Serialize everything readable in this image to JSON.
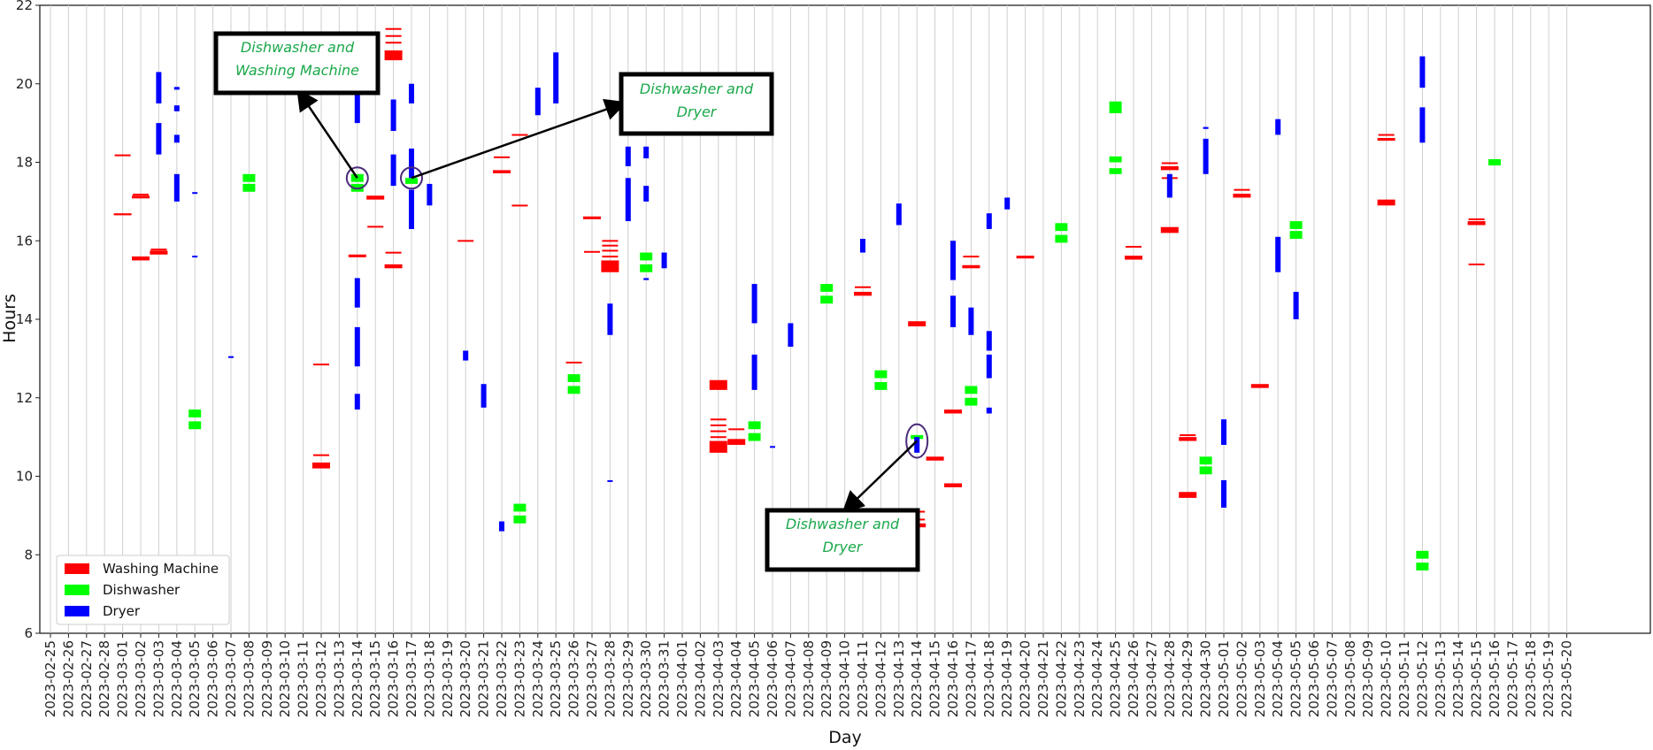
{
  "chart_data": {
    "type": "scatter",
    "title": "",
    "xlabel": "Day",
    "ylabel": "Hours",
    "ylim": [
      6,
      22
    ],
    "yticks": [
      6,
      8,
      10,
      12,
      14,
      16,
      18,
      20,
      22
    ],
    "grid": "vertical lines at each day",
    "legend_position": "lower-left",
    "categories": [
      "2023-02-25",
      "2023-02-26",
      "2023-02-27",
      "2023-02-28",
      "2023-03-01",
      "2023-03-02",
      "2023-03-03",
      "2023-03-04",
      "2023-03-05",
      "2023-03-06",
      "2023-03-07",
      "2023-03-08",
      "2023-03-09",
      "2023-03-10",
      "2023-03-11",
      "2023-03-12",
      "2023-03-13",
      "2023-03-14",
      "2023-03-15",
      "2023-03-16",
      "2023-03-17",
      "2023-03-18",
      "2023-03-19",
      "2023-03-20",
      "2023-03-21",
      "2023-03-22",
      "2023-03-23",
      "2023-03-24",
      "2023-03-25",
      "2023-03-26",
      "2023-03-27",
      "2023-03-28",
      "2023-03-29",
      "2023-03-30",
      "2023-03-31",
      "2023-04-01",
      "2023-04-02",
      "2023-04-03",
      "2023-04-04",
      "2023-04-05",
      "2023-04-06",
      "2023-04-07",
      "2023-04-08",
      "2023-04-09",
      "2023-04-10",
      "2023-04-11",
      "2023-04-12",
      "2023-04-13",
      "2023-04-14",
      "2023-04-15",
      "2023-04-16",
      "2023-04-17",
      "2023-04-18",
      "2023-04-19",
      "2023-04-20",
      "2023-04-21",
      "2023-04-22",
      "2023-04-23",
      "2023-04-24",
      "2023-04-25",
      "2023-04-26",
      "2023-04-27",
      "2023-04-28",
      "2023-04-29",
      "2023-04-30",
      "2023-05-01",
      "2023-05-02",
      "2023-05-03",
      "2023-05-04",
      "2023-05-05",
      "2023-05-06",
      "2023-05-07",
      "2023-05-08",
      "2023-05-09",
      "2023-05-10",
      "2023-05-11",
      "2023-05-12",
      "2023-05-13",
      "2023-05-14",
      "2023-05-15",
      "2023-05-16",
      "2023-05-17",
      "2023-05-18",
      "2023-05-19",
      "2023-05-20"
    ],
    "series": [
      {
        "name": "Washing Machine",
        "color": "#ff0000",
        "points": [
          [
            "2023-03-01",
            16.65,
            16.7
          ],
          [
            "2023-03-01",
            18.18,
            18.2
          ],
          [
            "2023-03-02",
            17.08,
            17.15
          ],
          [
            "2023-03-02",
            17.18,
            17.2
          ],
          [
            "2023-03-02",
            15.5,
            15.6
          ],
          [
            "2023-03-03",
            15.65,
            15.75
          ],
          [
            "2023-03-03",
            15.78,
            15.8
          ],
          [
            "2023-03-12",
            12.85,
            12.87
          ],
          [
            "2023-03-12",
            10.2,
            10.35
          ],
          [
            "2023-03-12",
            10.53,
            10.56
          ],
          [
            "2023-03-14",
            15.58,
            15.65
          ],
          [
            "2023-03-15",
            17.05,
            17.15
          ],
          [
            "2023-03-15",
            16.35,
            16.38
          ],
          [
            "2023-03-16",
            20.6,
            20.85
          ],
          [
            "2023-03-16",
            21.4,
            21.42
          ],
          [
            "2023-03-16",
            21.22,
            21.24
          ],
          [
            "2023-03-16",
            21.05,
            21.07
          ],
          [
            "2023-03-16",
            15.3,
            15.4
          ],
          [
            "2023-03-16",
            15.7,
            15.72
          ],
          [
            "2023-03-20",
            16.0,
            16.02
          ],
          [
            "2023-03-22",
            17.72,
            17.8
          ],
          [
            "2023-03-22",
            18.13,
            18.15
          ],
          [
            "2023-03-23",
            16.9,
            16.92
          ],
          [
            "2023-03-23",
            18.7,
            18.72
          ],
          [
            "2023-03-26",
            12.9,
            12.92
          ],
          [
            "2023-03-27",
            16.55,
            16.62
          ],
          [
            "2023-03-27",
            15.72,
            15.74
          ],
          [
            "2023-03-28",
            15.2,
            15.5
          ],
          [
            "2023-03-28",
            15.6,
            15.62
          ],
          [
            "2023-03-28",
            15.75,
            15.77
          ],
          [
            "2023-03-28",
            15.88,
            15.9
          ],
          [
            "2023-03-28",
            16.0,
            16.02
          ],
          [
            "2023-04-03",
            10.6,
            10.9
          ],
          [
            "2023-04-03",
            11.0,
            11.02
          ],
          [
            "2023-04-03",
            11.15,
            11.17
          ],
          [
            "2023-04-03",
            11.3,
            11.32
          ],
          [
            "2023-04-03",
            11.45,
            11.47
          ],
          [
            "2023-04-03",
            12.2,
            12.45
          ],
          [
            "2023-04-04",
            10.8,
            10.95
          ],
          [
            "2023-04-04",
            11.2,
            11.22
          ],
          [
            "2023-04-11",
            14.6,
            14.7
          ],
          [
            "2023-04-11",
            14.82,
            14.84
          ],
          [
            "2023-04-14",
            13.82,
            13.95
          ],
          [
            "2023-04-14",
            8.7,
            8.8
          ],
          [
            "2023-04-14",
            8.9,
            8.92
          ],
          [
            "2023-04-14",
            9.1,
            9.12
          ],
          [
            "2023-04-15",
            10.4,
            10.5
          ],
          [
            "2023-04-16",
            9.72,
            9.82
          ],
          [
            "2023-04-16",
            11.6,
            11.7
          ],
          [
            "2023-04-17",
            15.3,
            15.38
          ],
          [
            "2023-04-17",
            15.6,
            15.62
          ],
          [
            "2023-04-20",
            15.55,
            15.62
          ],
          [
            "2023-04-26",
            15.52,
            15.62
          ],
          [
            "2023-04-26",
            15.85,
            15.87
          ],
          [
            "2023-04-28",
            16.2,
            16.35
          ],
          [
            "2023-04-28",
            17.8,
            17.9
          ],
          [
            "2023-04-28",
            17.98,
            18.0
          ],
          [
            "2023-04-28",
            17.6,
            17.62
          ],
          [
            "2023-04-29",
            9.45,
            9.6
          ],
          [
            "2023-04-29",
            10.9,
            11.0
          ],
          [
            "2023-04-29",
            11.05,
            11.07
          ],
          [
            "2023-05-02",
            17.1,
            17.2
          ],
          [
            "2023-05-02",
            17.3,
            17.32
          ],
          [
            "2023-05-03",
            12.25,
            12.35
          ],
          [
            "2023-05-10",
            16.9,
            17.05
          ],
          [
            "2023-05-10",
            18.55,
            18.62
          ],
          [
            "2023-05-10",
            18.7,
            18.72
          ],
          [
            "2023-05-15",
            16.4,
            16.5
          ],
          [
            "2023-05-15",
            16.55,
            16.57
          ],
          [
            "2023-05-15",
            15.4,
            15.42
          ]
        ]
      },
      {
        "name": "Dishwasher",
        "color": "#00ff00",
        "points": [
          [
            "2023-03-05",
            11.2,
            11.4
          ],
          [
            "2023-03-05",
            11.5,
            11.7
          ],
          [
            "2023-03-08",
            17.25,
            17.45
          ],
          [
            "2023-03-08",
            17.5,
            17.7
          ],
          [
            "2023-03-14",
            17.25,
            17.45
          ],
          [
            "2023-03-14",
            17.5,
            17.7
          ],
          [
            "2023-03-17",
            17.45,
            17.6
          ],
          [
            "2023-03-23",
            8.8,
            9.0
          ],
          [
            "2023-03-23",
            9.1,
            9.3
          ],
          [
            "2023-03-26",
            12.1,
            12.3
          ],
          [
            "2023-03-26",
            12.4,
            12.6
          ],
          [
            "2023-03-30",
            15.2,
            15.4
          ],
          [
            "2023-03-30",
            15.5,
            15.7
          ],
          [
            "2023-04-05",
            10.9,
            11.1
          ],
          [
            "2023-04-05",
            11.2,
            11.4
          ],
          [
            "2023-04-09",
            14.4,
            14.6
          ],
          [
            "2023-04-09",
            14.7,
            14.9
          ],
          [
            "2023-04-12",
            12.2,
            12.4
          ],
          [
            "2023-04-12",
            12.5,
            12.7
          ],
          [
            "2023-04-14",
            10.95,
            11.05
          ],
          [
            "2023-04-17",
            11.8,
            12.0
          ],
          [
            "2023-04-17",
            12.1,
            12.3
          ],
          [
            "2023-04-22",
            15.95,
            16.15
          ],
          [
            "2023-04-22",
            16.25,
            16.45
          ],
          [
            "2023-04-25",
            17.7,
            17.85
          ],
          [
            "2023-04-25",
            18.0,
            18.15
          ],
          [
            "2023-04-25",
            19.25,
            19.55
          ],
          [
            "2023-04-30",
            10.05,
            10.25
          ],
          [
            "2023-04-30",
            10.3,
            10.5
          ],
          [
            "2023-05-05",
            16.05,
            16.25
          ],
          [
            "2023-05-05",
            16.3,
            16.5
          ],
          [
            "2023-05-12",
            7.6,
            7.8
          ],
          [
            "2023-05-12",
            7.9,
            8.1
          ],
          [
            "2023-05-16",
            17.92,
            18.08
          ]
        ]
      },
      {
        "name": "Dryer",
        "color": "#0000ff",
        "points": [
          [
            "2023-03-03",
            18.2,
            19.0
          ],
          [
            "2023-03-03",
            19.5,
            20.3
          ],
          [
            "2023-03-04",
            17.0,
            17.7
          ],
          [
            "2023-03-04",
            18.5,
            18.7
          ],
          [
            "2023-03-04",
            19.3,
            19.45
          ],
          [
            "2023-03-04",
            19.85,
            19.92
          ],
          [
            "2023-03-05",
            17.2,
            17.24
          ],
          [
            "2023-03-05",
            15.58,
            15.62
          ],
          [
            "2023-03-07",
            13.03,
            13.06
          ],
          [
            "2023-03-14",
            11.7,
            12.1
          ],
          [
            "2023-03-14",
            12.8,
            13.8
          ],
          [
            "2023-03-14",
            14.3,
            15.05
          ],
          [
            "2023-03-14",
            19.0,
            20.0
          ],
          [
            "2023-03-16",
            17.4,
            18.2
          ],
          [
            "2023-03-16",
            18.8,
            19.6
          ],
          [
            "2023-03-17",
            16.3,
            17.3
          ],
          [
            "2023-03-17",
            17.6,
            18.35
          ],
          [
            "2023-03-17",
            19.5,
            20.0
          ],
          [
            "2023-03-18",
            16.9,
            17.45
          ],
          [
            "2023-03-20",
            12.95,
            13.2
          ],
          [
            "2023-03-21",
            11.75,
            12.35
          ],
          [
            "2023-03-22",
            8.6,
            8.85
          ],
          [
            "2023-03-24",
            19.2,
            19.9
          ],
          [
            "2023-03-25",
            19.5,
            20.8
          ],
          [
            "2023-03-28",
            13.6,
            14.4
          ],
          [
            "2023-03-28",
            9.87,
            9.9
          ],
          [
            "2023-03-29",
            16.5,
            17.6
          ],
          [
            "2023-03-29",
            17.9,
            18.4
          ],
          [
            "2023-03-30",
            17.0,
            17.4
          ],
          [
            "2023-03-30",
            18.1,
            18.4
          ],
          [
            "2023-03-30",
            15.0,
            15.05
          ],
          [
            "2023-03-31",
            15.3,
            15.7
          ],
          [
            "2023-04-05",
            12.2,
            13.1
          ],
          [
            "2023-04-05",
            13.9,
            14.9
          ],
          [
            "2023-04-06",
            10.73,
            10.77
          ],
          [
            "2023-04-07",
            13.3,
            13.9
          ],
          [
            "2023-04-11",
            15.7,
            16.05
          ],
          [
            "2023-04-13",
            16.4,
            16.95
          ],
          [
            "2023-04-14",
            10.6,
            11.0
          ],
          [
            "2023-04-16",
            13.8,
            14.6
          ],
          [
            "2023-04-16",
            15.0,
            16.0
          ],
          [
            "2023-04-17",
            13.6,
            14.3
          ],
          [
            "2023-04-18",
            11.6,
            11.75
          ],
          [
            "2023-04-18",
            12.5,
            13.1
          ],
          [
            "2023-04-18",
            13.2,
            13.7
          ],
          [
            "2023-04-18",
            16.3,
            16.7
          ],
          [
            "2023-04-19",
            16.8,
            17.1
          ],
          [
            "2023-04-28",
            17.1,
            17.7
          ],
          [
            "2023-04-30",
            17.7,
            18.6
          ],
          [
            "2023-04-30",
            18.85,
            18.9
          ],
          [
            "2023-05-01",
            9.2,
            9.9
          ],
          [
            "2023-05-01",
            10.8,
            11.45
          ],
          [
            "2023-05-04",
            15.2,
            16.1
          ],
          [
            "2023-05-04",
            18.7,
            19.1
          ],
          [
            "2023-05-05",
            14.0,
            14.7
          ],
          [
            "2023-05-12",
            18.5,
            19.4
          ],
          [
            "2023-05-12",
            19.9,
            20.7
          ]
        ]
      }
    ],
    "annotations": [
      {
        "text": "Dishwasher and Washing Machine",
        "lines": [
          "Dishwasher and",
          "Washing Machine"
        ],
        "day": "2023-03-14",
        "hours": 17.6
      },
      {
        "text": "Dishwasher and Dryer",
        "lines": [
          "Dishwasher and",
          "Dryer"
        ],
        "day": "2023-03-17",
        "hours": 17.6
      },
      {
        "text": "Dishwasher and Dryer",
        "lines": [
          "Dishwasher and",
          "Dryer"
        ],
        "day": "2023-04-14",
        "hours": 10.9
      }
    ]
  }
}
